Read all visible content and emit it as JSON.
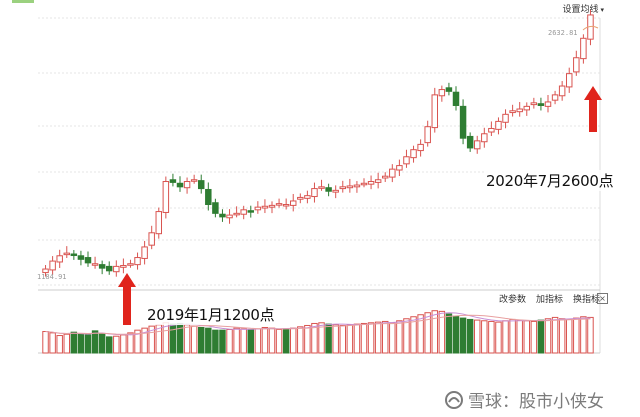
{
  "header": {
    "settings_label": "设置均线",
    "settings_caret": "▾"
  },
  "price_labels": {
    "high": "2632.81",
    "low": "1184.91"
  },
  "annotations": {
    "start": "2019年1月1200点",
    "end": "2020年7月2600点"
  },
  "volume_toolbar": {
    "change_params": "改参数",
    "add_indicator": "加指标",
    "switch_indicator": "换指标",
    "close": "×"
  },
  "watermark": {
    "logo": "snowball-logo-icon",
    "text": "雪球：股市小侠女"
  },
  "colors": {
    "up": "#d9534f",
    "down": "#2e7d32",
    "arrow": "#e0241c",
    "grid": "#e6e6e6"
  },
  "chart_data": {
    "type": "candlestick",
    "title": "",
    "y_high_label": 2632.81,
    "y_low_label": 1184.91,
    "close_series": [
      1195,
      1240,
      1270,
      1285,
      1275,
      1250,
      1230,
      1225,
      1200,
      1185,
      1210,
      1215,
      1225,
      1260,
      1320,
      1400,
      1520,
      1690,
      1685,
      1660,
      1690,
      1700,
      1650,
      1560,
      1510,
      1490,
      1500,
      1510,
      1530,
      1520,
      1545,
      1550,
      1555,
      1565,
      1560,
      1580,
      1600,
      1610,
      1650,
      1660,
      1635,
      1640,
      1660,
      1665,
      1670,
      1680,
      1690,
      1700,
      1720,
      1760,
      1780,
      1830,
      1870,
      1900,
      2000,
      2180,
      2210,
      2200,
      2120,
      1935,
      1880,
      1920,
      1960,
      1990,
      2030,
      2070,
      2090,
      2100,
      2115,
      2135,
      2120,
      2140,
      2180,
      2230,
      2300,
      2390,
      2500,
      2632
    ],
    "volume_series": [
      32,
      30,
      26,
      28,
      31,
      29,
      27,
      33,
      29,
      24,
      25,
      27,
      30,
      34,
      37,
      40,
      42,
      45,
      43,
      44,
      42,
      40,
      38,
      37,
      34,
      34,
      35,
      37,
      36,
      35,
      36,
      38,
      37,
      35,
      36,
      37,
      39,
      41,
      44,
      45,
      43,
      42,
      41,
      42,
      43,
      44,
      45,
      46,
      47,
      45,
      48,
      51,
      54,
      57,
      60,
      63,
      62,
      58,
      55,
      52,
      50,
      49,
      48,
      47,
      46,
      48,
      50,
      49,
      48,
      47,
      49,
      51,
      53,
      51,
      50,
      52,
      54,
      53
    ]
  }
}
